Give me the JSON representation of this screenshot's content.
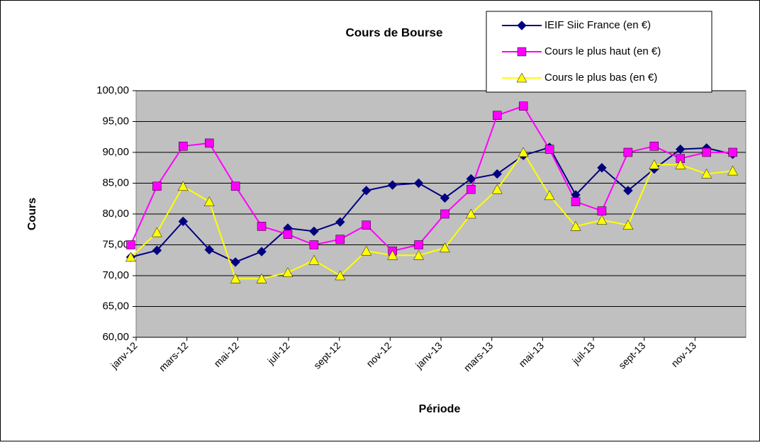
{
  "chart_data": {
    "type": "line",
    "title": "Cours de Bourse",
    "x_label": "Période",
    "y_label": "Cours",
    "categories": [
      "janv-12",
      null,
      "mars-12",
      null,
      "mai-12",
      null,
      "juil-12",
      null,
      "sept-12",
      null,
      "nov-12",
      null,
      "janv-13",
      null,
      "mars-13",
      null,
      "mai-13",
      null,
      "juil-13",
      null,
      "sept-13",
      null,
      "nov-13",
      null
    ],
    "series": [
      {
        "name": "IEIF Siic France (en €)",
        "color": "#000080",
        "marker": "diamond",
        "values": [
          73,
          74.1,
          78.8,
          74.2,
          72.2,
          73.9,
          77.7,
          77.2,
          78.7,
          83.8,
          84.7,
          85,
          82.6,
          85.7,
          86.5,
          89.5,
          90.8,
          83.1,
          87.5,
          83.8,
          87.3,
          90.5,
          90.7,
          89.7
        ]
      },
      {
        "name": "Cours le plus haut (en €)",
        "color": "#ff00ff",
        "marker": "square",
        "values": [
          75,
          84.5,
          91,
          91.5,
          84.5,
          78,
          76.7,
          75,
          75.9,
          78.2,
          74,
          75,
          80,
          84,
          96,
          97.5,
          90.5,
          82,
          80.5,
          90,
          91,
          89,
          90,
          90
        ]
      },
      {
        "name": "Cours le plus bas (en €)",
        "color": "#ffff00",
        "marker": "triangle",
        "values": [
          73,
          77,
          84.5,
          82,
          69.5,
          69.5,
          70.5,
          72.5,
          70,
          74,
          73.3,
          73.3,
          74.5,
          80,
          84,
          90,
          83,
          78,
          79,
          78.2,
          88,
          88,
          86.5,
          87
        ]
      }
    ],
    "ylim": [
      60,
      100
    ],
    "yticks": [
      {
        "value": 60,
        "label": "60,00"
      },
      {
        "value": 65,
        "label": "65,00"
      },
      {
        "value": 70,
        "label": "70,00"
      },
      {
        "value": 75,
        "label": "75,00"
      },
      {
        "value": 80,
        "label": "80,00"
      },
      {
        "value": 85,
        "label": "85,00"
      },
      {
        "value": 90,
        "label": "90,00"
      },
      {
        "value": 95,
        "label": "95,00"
      },
      {
        "value": {
          "value": 100,
          "label": "100,00"
        },
        "label": "100,00"
      }
    ],
    "grid": true,
    "plot_background": "#c0c0c0",
    "legend": "top-right"
  }
}
